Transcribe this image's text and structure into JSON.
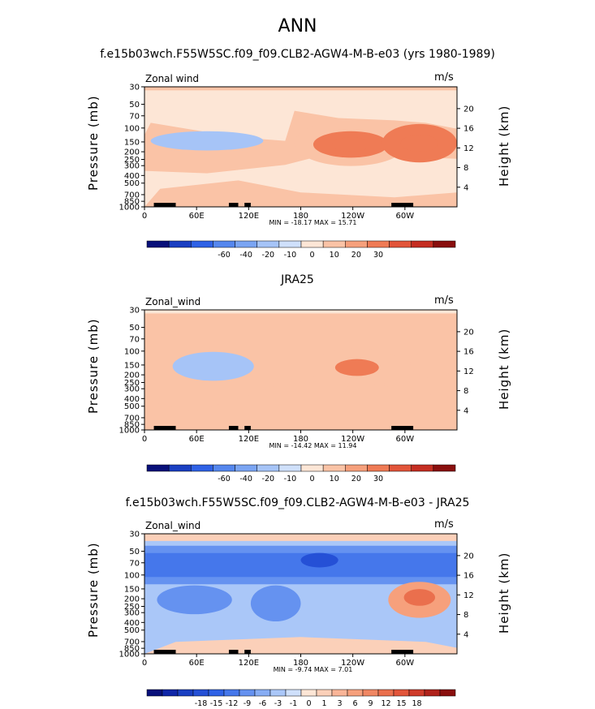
{
  "page_title": "ANN",
  "colors": {
    "frame": "#000000",
    "ocean_black": "#000000"
  },
  "chart_data": [
    {
      "type": "heatmap",
      "title": "f.e15b03wch.F55W5SC.f09_f09.CLB2-AGW4-M-B-e03 (yrs 1980-1989)",
      "corner_left": "Zonal wind",
      "corner_right": "m/s",
      "ylabel_left": "Pressure (mb)",
      "ylabel_right": "Height (km)",
      "pressure_ticks": [
        "30",
        "50",
        "70",
        "100",
        "150",
        "200",
        "250",
        "300",
        "400",
        "500",
        "700",
        "850",
        "1000"
      ],
      "height_ticks": [
        "20",
        "16",
        "12",
        "8",
        "4"
      ],
      "lon_ticks": [
        "0",
        "60E",
        "120E",
        "180",
        "120W",
        "60W"
      ],
      "minmax": "MIN = -18.17   MAX =  15.71",
      "levels": [
        "-60",
        "-40",
        "-20",
        "-10",
        "0",
        "10",
        "20",
        "30"
      ],
      "colorbar": [
        "#08107a",
        "#1a3fc2",
        "#2f62e6",
        "#5587ee",
        "#7ba5f3",
        "#a6c4f7",
        "#cfe0fb",
        "#fde6d6",
        "#fac3a6",
        "#f6a07c",
        "#ef7b55",
        "#e2553a",
        "#c52e22",
        "#8a0f0e"
      ],
      "features": [
        {
          "name": "background",
          "value": -3
        },
        {
          "name": "westerly-jet-pacific",
          "value": 15.7
        },
        {
          "name": "westerly-jet-atlantic",
          "value": 12
        },
        {
          "name": "easterly-120e",
          "value": -15
        }
      ]
    },
    {
      "type": "heatmap",
      "title": "JRA25",
      "corner_left": "Zonal_wind",
      "corner_right": "m/s",
      "ylabel_left": "Pressure (mb)",
      "ylabel_right": "Height (km)",
      "pressure_ticks": [
        "30",
        "50",
        "70",
        "100",
        "150",
        "200",
        "250",
        "300",
        "400",
        "500",
        "700",
        "850",
        "1000"
      ],
      "height_ticks": [
        "20",
        "16",
        "12",
        "8",
        "4"
      ],
      "lon_ticks": [
        "0",
        "60E",
        "120E",
        "180",
        "120W",
        "60W"
      ],
      "minmax": "MIN = -14.42   MAX =  11.94",
      "levels": [
        "-60",
        "-40",
        "-20",
        "-10",
        "0",
        "10",
        "20",
        "30"
      ],
      "colorbar": [
        "#08107a",
        "#1a3fc2",
        "#2f62e6",
        "#5587ee",
        "#7ba5f3",
        "#a6c4f7",
        "#cfe0fb",
        "#fde6d6",
        "#fac3a6",
        "#f6a07c",
        "#ef7b55",
        "#e2553a",
        "#c52e22",
        "#8a0f0e"
      ],
      "features": [
        {
          "name": "background",
          "value": 2
        },
        {
          "name": "westerly-jet-pacific",
          "value": 11.9
        },
        {
          "name": "easterly-120e",
          "value": -14.4
        }
      ]
    },
    {
      "type": "heatmap",
      "title": "f.e15b03wch.F55W5SC.f09_f09.CLB2-AGW4-M-B-e03 - JRA25",
      "corner_left": "Zonal_wind",
      "corner_right": "m/s",
      "ylabel_left": "Pressure (mb)",
      "ylabel_right": "Height (km)",
      "pressure_ticks": [
        "30",
        "50",
        "70",
        "100",
        "150",
        "200",
        "250",
        "300",
        "400",
        "500",
        "700",
        "850",
        "1000"
      ],
      "height_ticks": [
        "20",
        "16",
        "12",
        "8",
        "4"
      ],
      "lon_ticks": [
        "0",
        "60E",
        "120E",
        "180",
        "120W",
        "60W"
      ],
      "minmax": "MIN = -9.74   MAX =   7.01",
      "levels": [
        "-18",
        "-15",
        "-12",
        "-9",
        "-6",
        "-3",
        "-1",
        "0",
        "1",
        "3",
        "6",
        "9",
        "12",
        "15",
        "18"
      ],
      "colorbar": [
        "#08107a",
        "#0f26a8",
        "#1a3fc2",
        "#2550d6",
        "#2f62e6",
        "#4577eb",
        "#6592f0",
        "#87adf4",
        "#aac7f8",
        "#cfe0fb",
        "#fde6d6",
        "#fbd0b9",
        "#f9b598",
        "#f6a07c",
        "#f08763",
        "#ea6f4d",
        "#e2553a",
        "#cf3b2a",
        "#b0221b",
        "#8a0f0e"
      ],
      "features": [
        {
          "name": "background",
          "value": -1.5
        },
        {
          "name": "stratospheric-easterly-bias",
          "value": -9.7
        },
        {
          "name": "atlantic-westerly-bias",
          "value": 7.0
        }
      ]
    }
  ]
}
